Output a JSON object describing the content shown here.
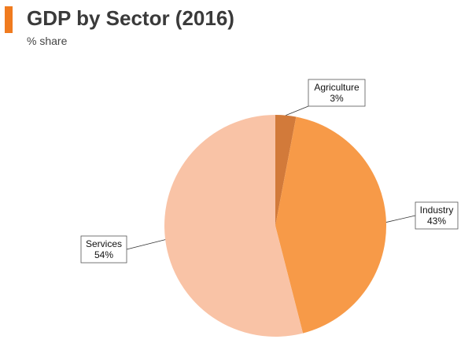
{
  "header": {
    "title": "GDP by Sector (2016)",
    "subtitle": "% share",
    "accent_color": "#f07b1f"
  },
  "chart_data": {
    "type": "pie",
    "title": "GDP by Sector (2016)",
    "subtitle": "% share",
    "slices": [
      {
        "label": "Agriculture",
        "value": 3,
        "value_label": "3%",
        "color": "#d27a3a"
      },
      {
        "label": "Industry",
        "value": 43,
        "value_label": "43%",
        "color": "#f79a48"
      },
      {
        "label": "Services",
        "value": 54,
        "value_label": "54%",
        "color": "#f9c3a6"
      }
    ],
    "legend": "none",
    "data_labels": "outside-callout"
  }
}
